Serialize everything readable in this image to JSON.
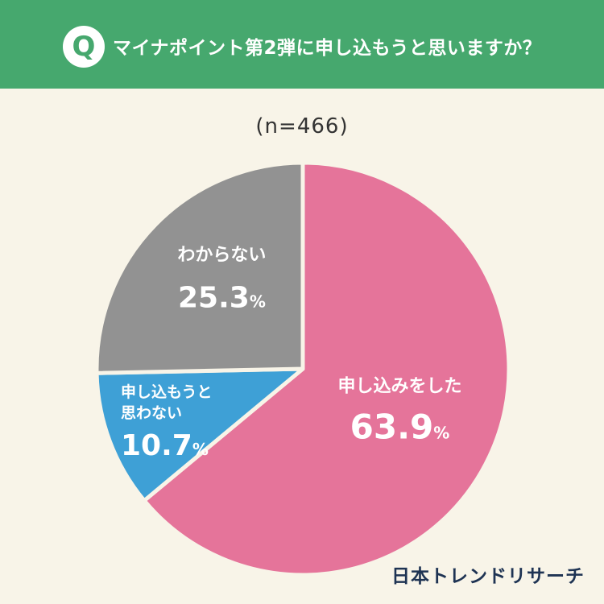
{
  "header": {
    "badge": "Q",
    "question": "マイナポイント第2弾に申し込もうと思いますか？"
  },
  "sample_size_label": "(n=466)",
  "logo": "日本トレンドリサーチ",
  "colors": {
    "header_bg": "#46a86e",
    "page_bg": "#f8f4e8",
    "text_dark": "#333333",
    "logo": "#1e3353"
  },
  "chart_data": {
    "type": "pie",
    "n": 466,
    "slices": [
      {
        "label": "申し込みをした",
        "value": 63.9,
        "value_label": "63.9",
        "color": "#e5749a"
      },
      {
        "label": "申し込もうと思わない",
        "value": 10.7,
        "value_label": "10.7",
        "color": "#3ea0d6"
      },
      {
        "label": "わからない",
        "value": 25.3,
        "value_label": "25.3",
        "color": "#929292"
      }
    ],
    "unit": "%",
    "start": "12 o'clock",
    "direction": "clockwise"
  }
}
